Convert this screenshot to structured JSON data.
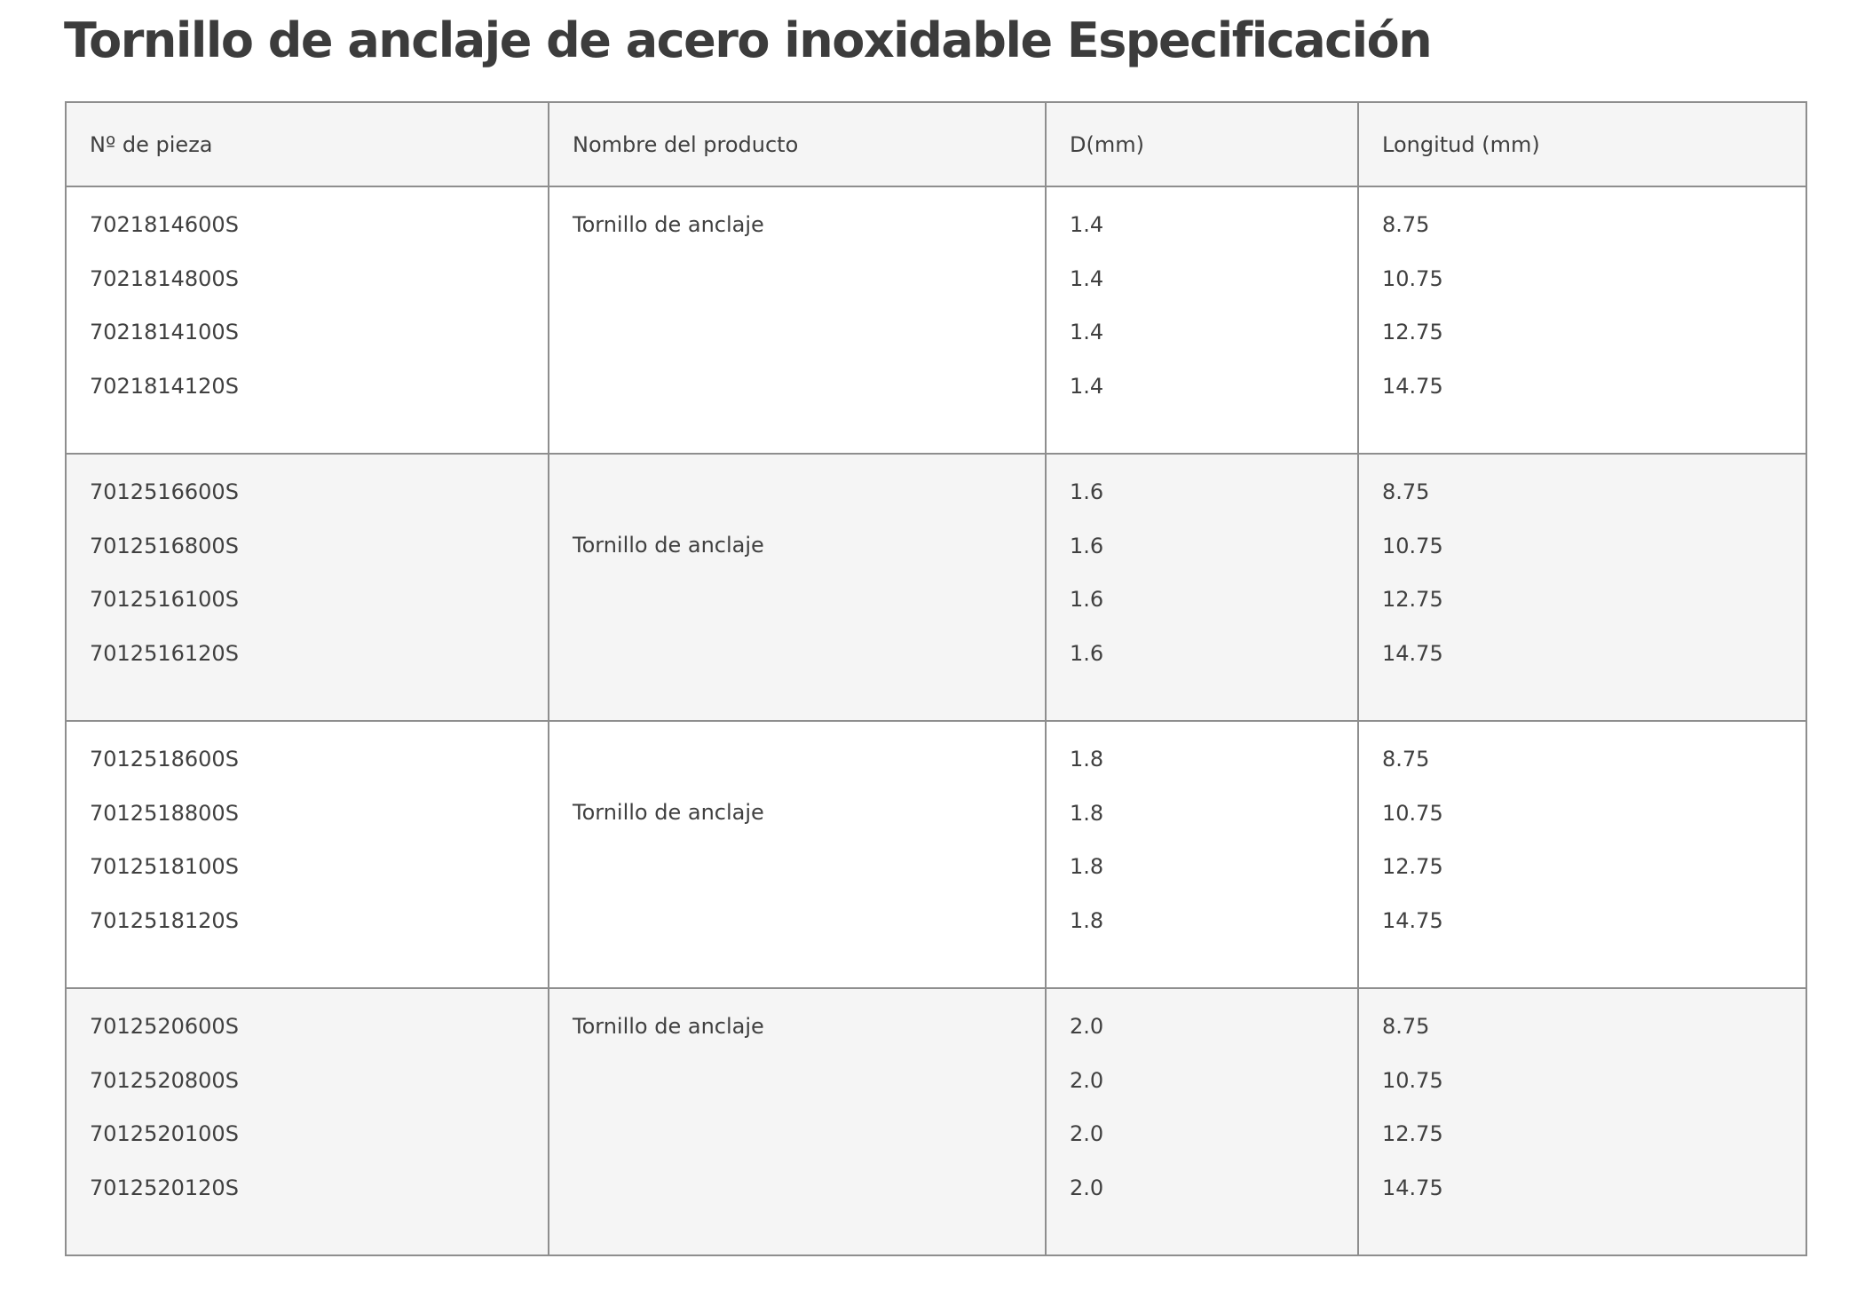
{
  "title": "Tornillo de anclaje de acero inoxidable Especificación",
  "table": {
    "headers": [
      "Nº de pieza",
      "Nombre del producto",
      "D(mm)",
      "Longitud (mm)"
    ],
    "groups": [
      {
        "part_numbers": [
          "7021814600S",
          "7021814800S",
          "7021814100S",
          "7021814120S"
        ],
        "product_name": "Tornillo de anclaje",
        "name_position": "top",
        "diameters": [
          "1.4",
          "1.4",
          "1.4",
          "1.4"
        ],
        "lengths": [
          "8.75",
          "10.75",
          "12.75",
          "14.75"
        ]
      },
      {
        "part_numbers": [
          "7012516600S",
          "7012516800S",
          "7012516100S",
          "7012516120S"
        ],
        "product_name": "Tornillo de anclaje",
        "name_position": "second-line",
        "diameters": [
          "1.6",
          "1.6",
          "1.6",
          "1.6"
        ],
        "lengths": [
          "8.75",
          "10.75",
          "12.75",
          "14.75"
        ]
      },
      {
        "part_numbers": [
          "7012518600S",
          "7012518800S",
          "7012518100S",
          "7012518120S"
        ],
        "product_name": "Tornillo de anclaje",
        "name_position": "second-line",
        "diameters": [
          "1.8",
          "1.8",
          "1.8",
          "1.8"
        ],
        "lengths": [
          "8.75",
          "10.75",
          "12.75",
          "14.75"
        ]
      },
      {
        "part_numbers": [
          "7012520600S",
          "7012520800S",
          "7012520100S",
          "7012520120S"
        ],
        "product_name": "Tornillo de anclaje",
        "name_position": "top",
        "diameters": [
          "2.0",
          "2.0",
          "2.0",
          "2.0"
        ],
        "lengths": [
          "8.75",
          "10.75",
          "12.75",
          "14.75"
        ]
      }
    ]
  },
  "colors": {
    "text": "#404040",
    "border": "#8e8e8e",
    "stripe": "#f5f5f5"
  }
}
